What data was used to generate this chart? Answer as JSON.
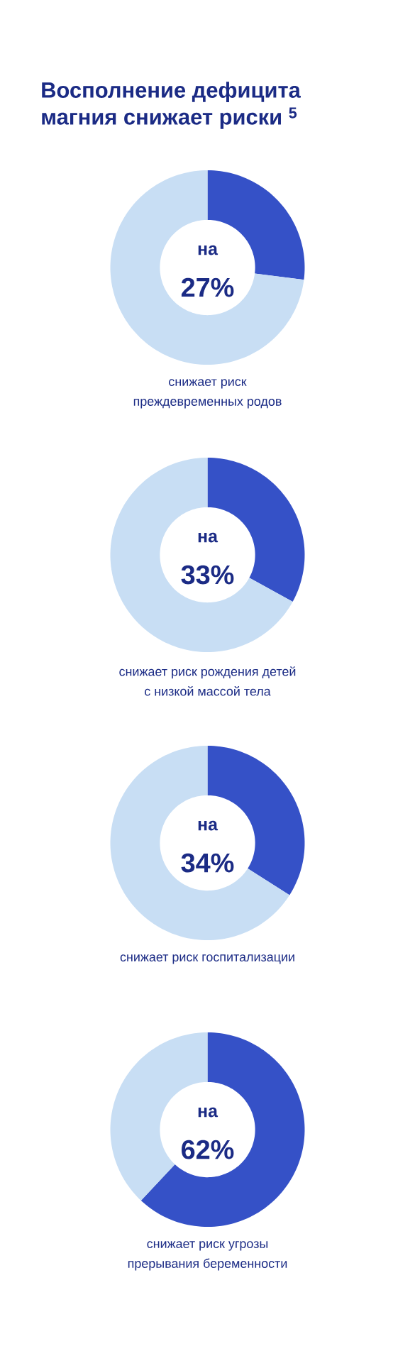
{
  "chart_data": [
    {
      "type": "donut",
      "title": "Восполнение дефицита магния снижает риски $^{5}$",
      "subtitle": "снижает риск преждевременных родов",
      "categories": [
        null,
        null
      ],
      "values": [
        27,
        73
      ],
      "colors": [
        "#3551c7",
        "#c8def4"
      ],
      "annotations": [
        "на",
        "27%"
      ]
    },
    {
      "type": "donut",
      "subtitle": "снижает риск рождения детей с низкой массой тела",
      "categories": [
        null,
        null
      ],
      "values": [
        33,
        67
      ],
      "colors": [
        "#3551c7",
        "#c8def4"
      ],
      "annotations": [
        "на",
        "33%"
      ]
    },
    {
      "type": "donut",
      "subtitle": "снижает риск госпитализации",
      "categories": [
        null,
        null
      ],
      "values": [
        34,
        66
      ],
      "colors": [
        "#3551c7",
        "#c8def4"
      ],
      "annotations": [
        "на",
        "34%"
      ]
    },
    {
      "type": "donut",
      "subtitle": "снижает риск угрозы прерывания беременности",
      "categories": [
        null,
        null
      ],
      "values": [
        62,
        38
      ],
      "colors": [
        "#3551c7",
        "#c8def4"
      ],
      "annotations": [
        "на",
        "62%"
      ]
    }
  ]
}
